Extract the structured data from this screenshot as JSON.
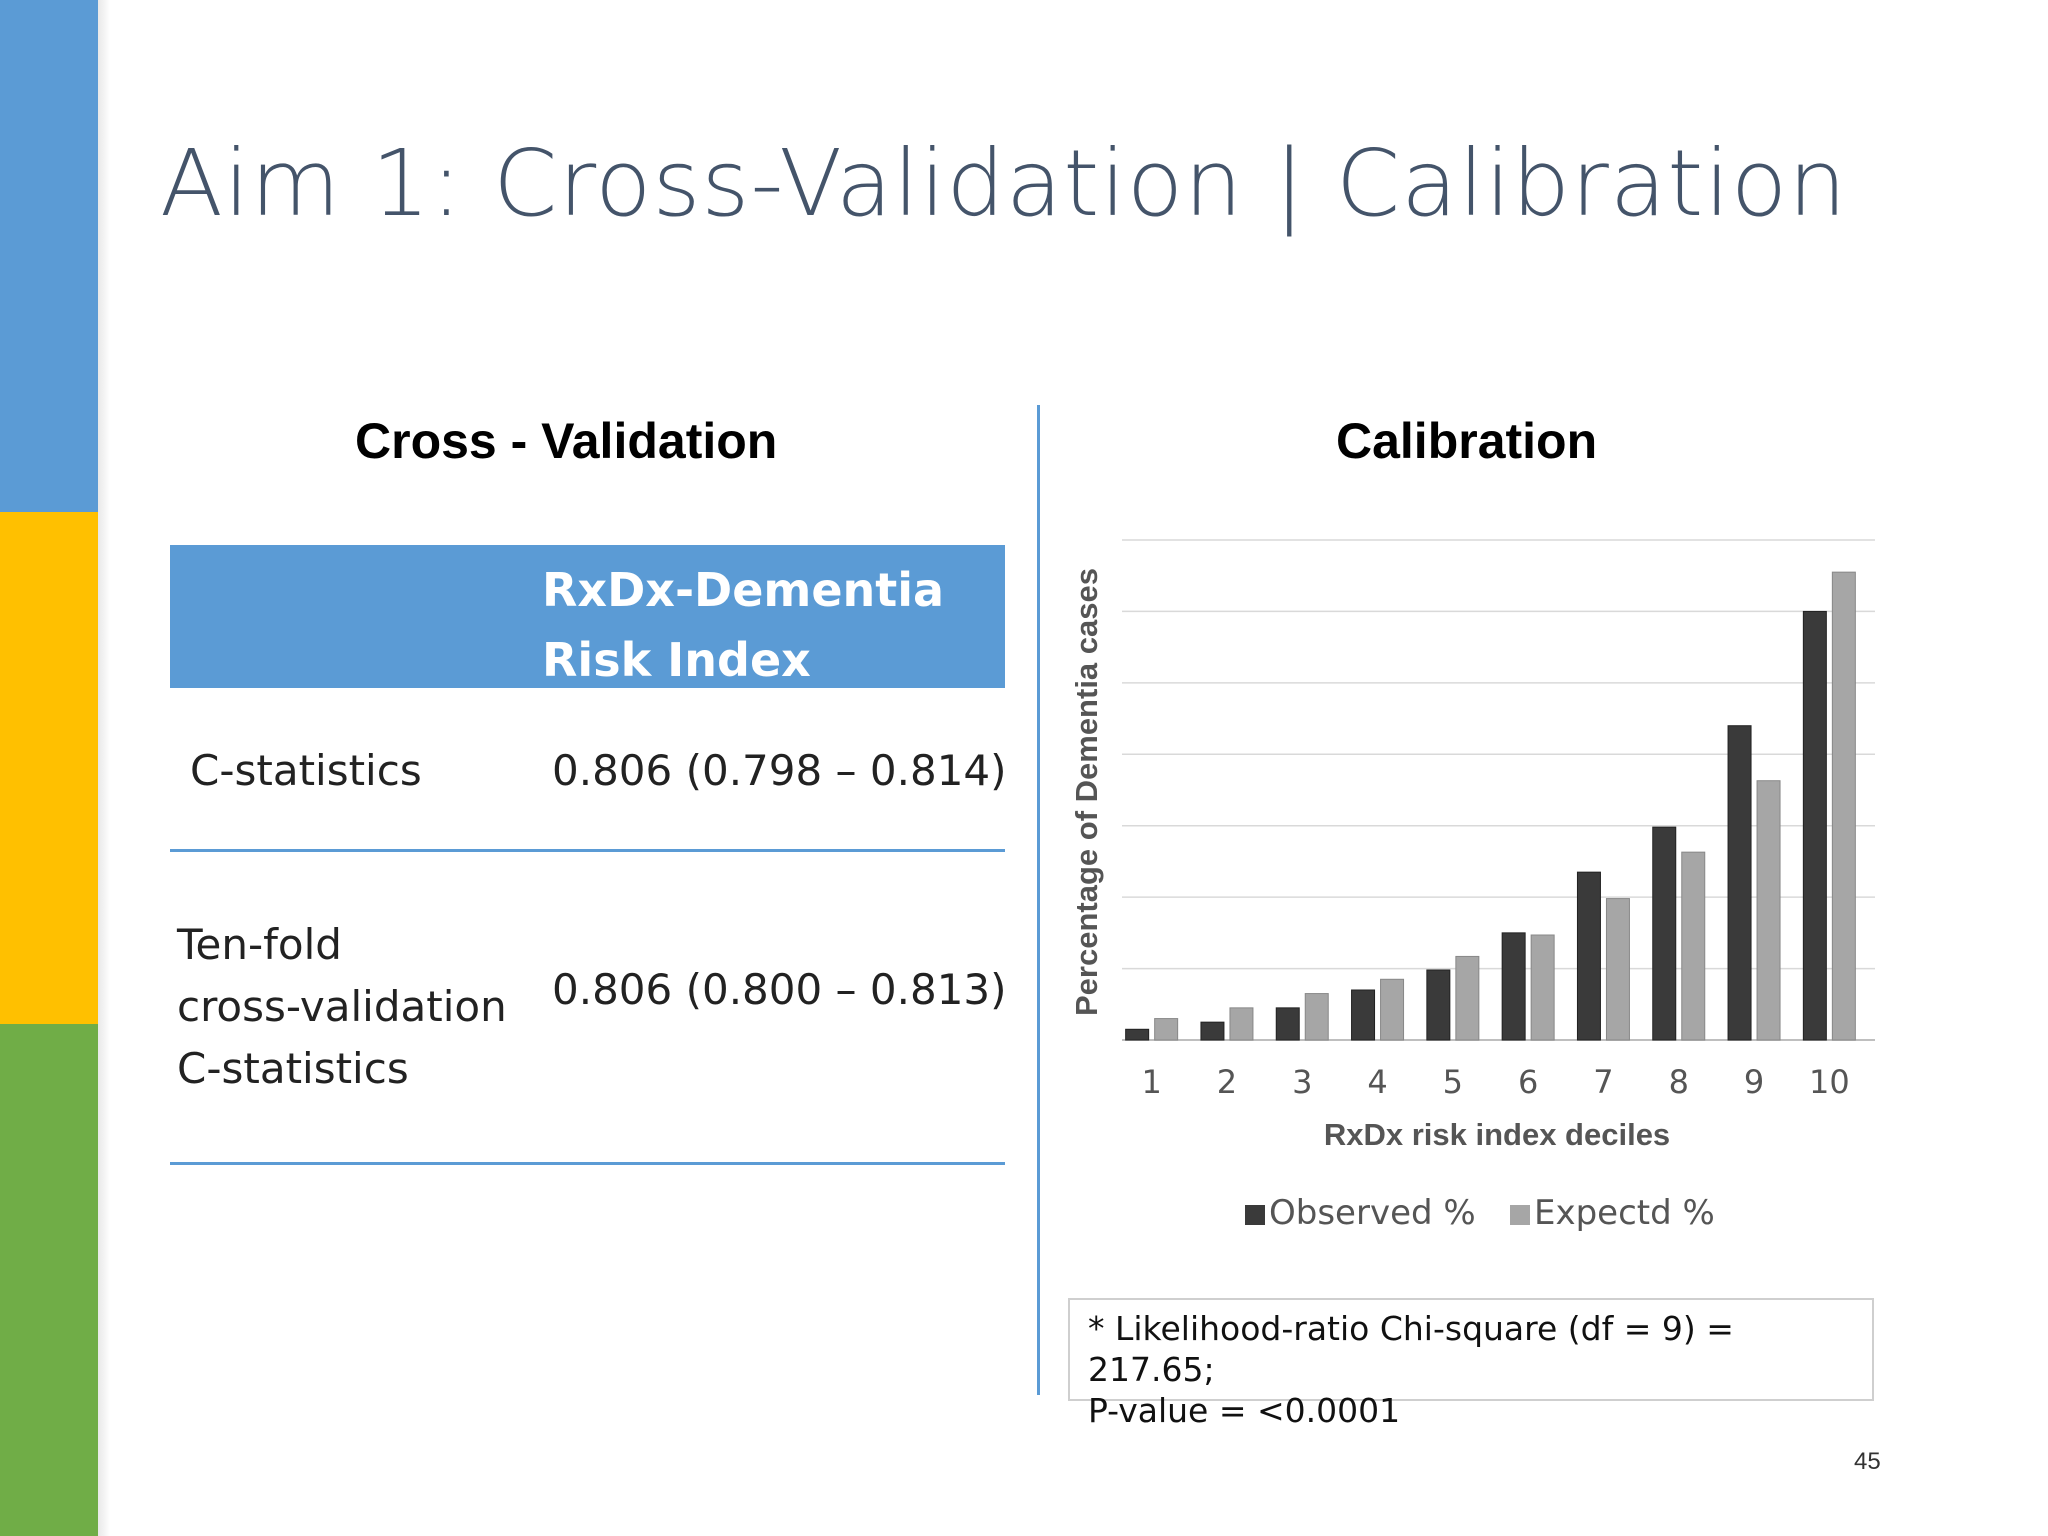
{
  "slide": {
    "title": "Aim 1: Cross-Validation | Calibration",
    "page_number": "45",
    "accent_colors": [
      "#5b9bd5",
      "#ffc000",
      "#70ad47"
    ]
  },
  "left": {
    "heading": "Cross - Validation",
    "table": {
      "header": [
        "RxDx-Dementia",
        "Risk Index"
      ],
      "rows": [
        {
          "label": [
            "C-statistics"
          ],
          "value": "0.806 (0.798 – 0.814)"
        },
        {
          "label": [
            "Ten-fold",
            "cross-validation",
            "C-statistics"
          ],
          "value": "0.806 (0.800 – 0.813)"
        }
      ]
    }
  },
  "right": {
    "heading": "Calibration",
    "footnote": [
      "* Likelihood-ratio Chi-square (df = 9) =   217.65;",
      "P-value = <0.0001"
    ]
  },
  "chart_data": {
    "type": "bar",
    "title": "",
    "xlabel": "RxDx risk index deciles",
    "ylabel": "Percentage of Dementia cases",
    "categories": [
      "1",
      "2",
      "3",
      "4",
      "5",
      "6",
      "7",
      "8",
      "9",
      "10"
    ],
    "series": [
      {
        "name": "Observed %",
        "color": "#3a3a3a",
        "values": [
          0.15,
          0.25,
          0.45,
          0.7,
          0.98,
          1.5,
          2.35,
          2.98,
          4.4,
          6.0
        ]
      },
      {
        "name": "Expectd %",
        "color": "#a6a6a6",
        "values": [
          0.3,
          0.45,
          0.65,
          0.85,
          1.17,
          1.47,
          1.98,
          2.63,
          3.63,
          6.55
        ]
      }
    ],
    "ylim": [
      0,
      7
    ],
    "y_tick_labels_shown": false,
    "grid": true,
    "legend_position": "bottom"
  }
}
